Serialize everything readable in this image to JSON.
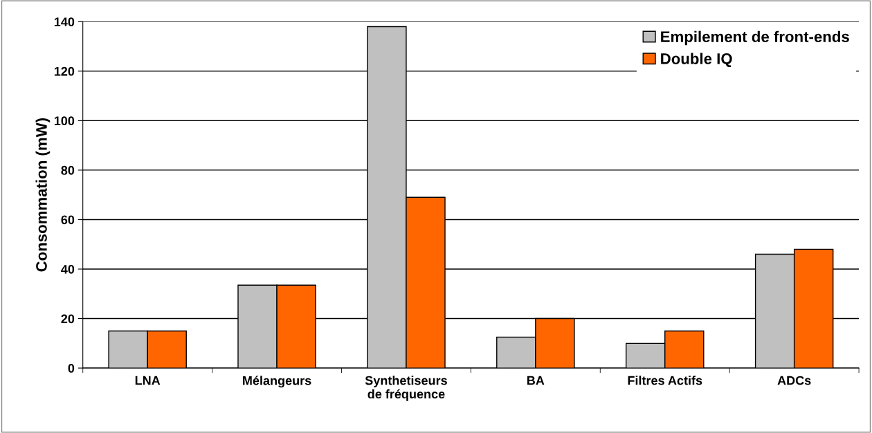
{
  "chart_data": {
    "type": "bar",
    "ylabel": "Consommation (mW)",
    "categories": [
      "LNA",
      "Mélangeurs",
      "Synthetiseurs\nde fréquence",
      "BA",
      "Filtres Actifs",
      "ADCs"
    ],
    "series": [
      {
        "name": "Empilement de front-ends",
        "color": "#c0c0c0",
        "values": [
          15,
          33.5,
          138,
          12.5,
          10,
          46
        ]
      },
      {
        "name": "Double IQ",
        "color": "#ff6600",
        "values": [
          15,
          33.5,
          69,
          20,
          15,
          48
        ]
      }
    ],
    "ylim": [
      0,
      140
    ],
    "yticks": [
      0,
      20,
      40,
      60,
      80,
      100,
      120,
      140
    ],
    "grid": "y",
    "legend": "top right"
  }
}
